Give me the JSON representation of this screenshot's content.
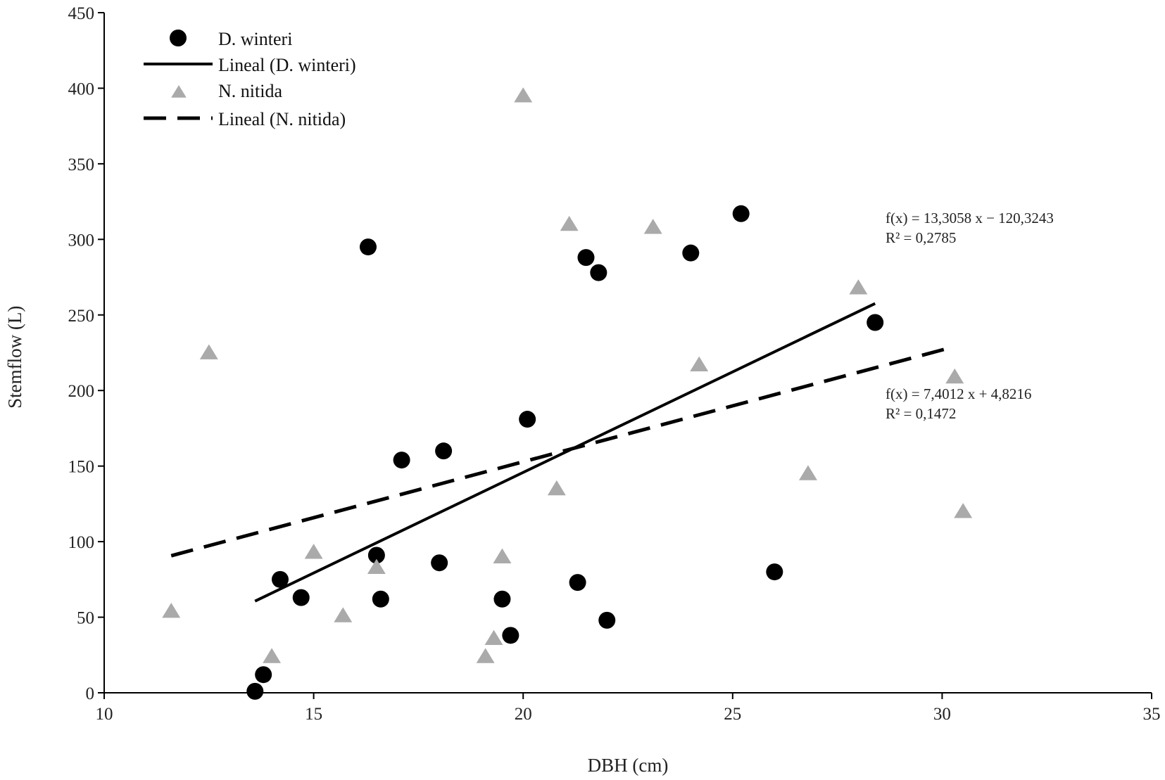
{
  "chart_data": {
    "type": "scatter",
    "title": "",
    "xlabel": "DBH (cm)",
    "ylabel": "Stemflow (L)",
    "xlim": [
      10,
      35
    ],
    "ylim": [
      0,
      450
    ],
    "x_ticks": [
      10,
      15,
      20,
      25,
      30,
      35
    ],
    "y_ticks": [
      0,
      50,
      100,
      150,
      200,
      250,
      300,
      350,
      400,
      450
    ],
    "grid": false,
    "legend_placement": "top-left",
    "series": [
      {
        "name": "D. winteri",
        "marker": "circle",
        "color": "#000000",
        "points": [
          [
            13.6,
            1
          ],
          [
            13.8,
            12
          ],
          [
            14.2,
            75
          ],
          [
            14.7,
            63
          ],
          [
            16.3,
            295
          ],
          [
            16.5,
            91
          ],
          [
            16.6,
            62
          ],
          [
            17.1,
            154
          ],
          [
            18.0,
            86
          ],
          [
            18.1,
            160
          ],
          [
            19.5,
            62
          ],
          [
            19.7,
            38
          ],
          [
            20.1,
            181
          ],
          [
            21.3,
            73
          ],
          [
            21.5,
            288
          ],
          [
            21.8,
            278
          ],
          [
            22.0,
            48
          ],
          [
            24.0,
            291
          ],
          [
            25.2,
            317
          ],
          [
            26.0,
            80
          ],
          [
            28.4,
            245
          ]
        ],
        "trendline": {
          "name": "Lineal (D. winteri)",
          "style": "solid",
          "slope": 13.3058,
          "intercept": -120.3243,
          "x_range": [
            13.6,
            28.4
          ],
          "equation": "f(x) = 13,3058 x − 120,3243",
          "r2": "R² = 0,2785"
        }
      },
      {
        "name": "N. nitida",
        "marker": "triangle",
        "color": "#aaaaaa",
        "points": [
          [
            11.6,
            54
          ],
          [
            12.5,
            225
          ],
          [
            14.0,
            24
          ],
          [
            15.0,
            93
          ],
          [
            15.7,
            51
          ],
          [
            16.5,
            83
          ],
          [
            19.1,
            24
          ],
          [
            19.3,
            36
          ],
          [
            19.5,
            90
          ],
          [
            20.0,
            395
          ],
          [
            20.8,
            135
          ],
          [
            21.1,
            310
          ],
          [
            23.1,
            308
          ],
          [
            24.2,
            217
          ],
          [
            26.8,
            145
          ],
          [
            28.0,
            268
          ],
          [
            30.3,
            209
          ],
          [
            30.5,
            120
          ]
        ],
        "trendline": {
          "name": "Lineal (N. nitida)",
          "style": "dashed",
          "slope": 7.4012,
          "intercept": 4.8216,
          "x_range": [
            11.6,
            30.2
          ],
          "equation": "f(x) = 7,4012 x + 4,8216",
          "r2": "R² = 0,1472"
        }
      }
    ]
  }
}
